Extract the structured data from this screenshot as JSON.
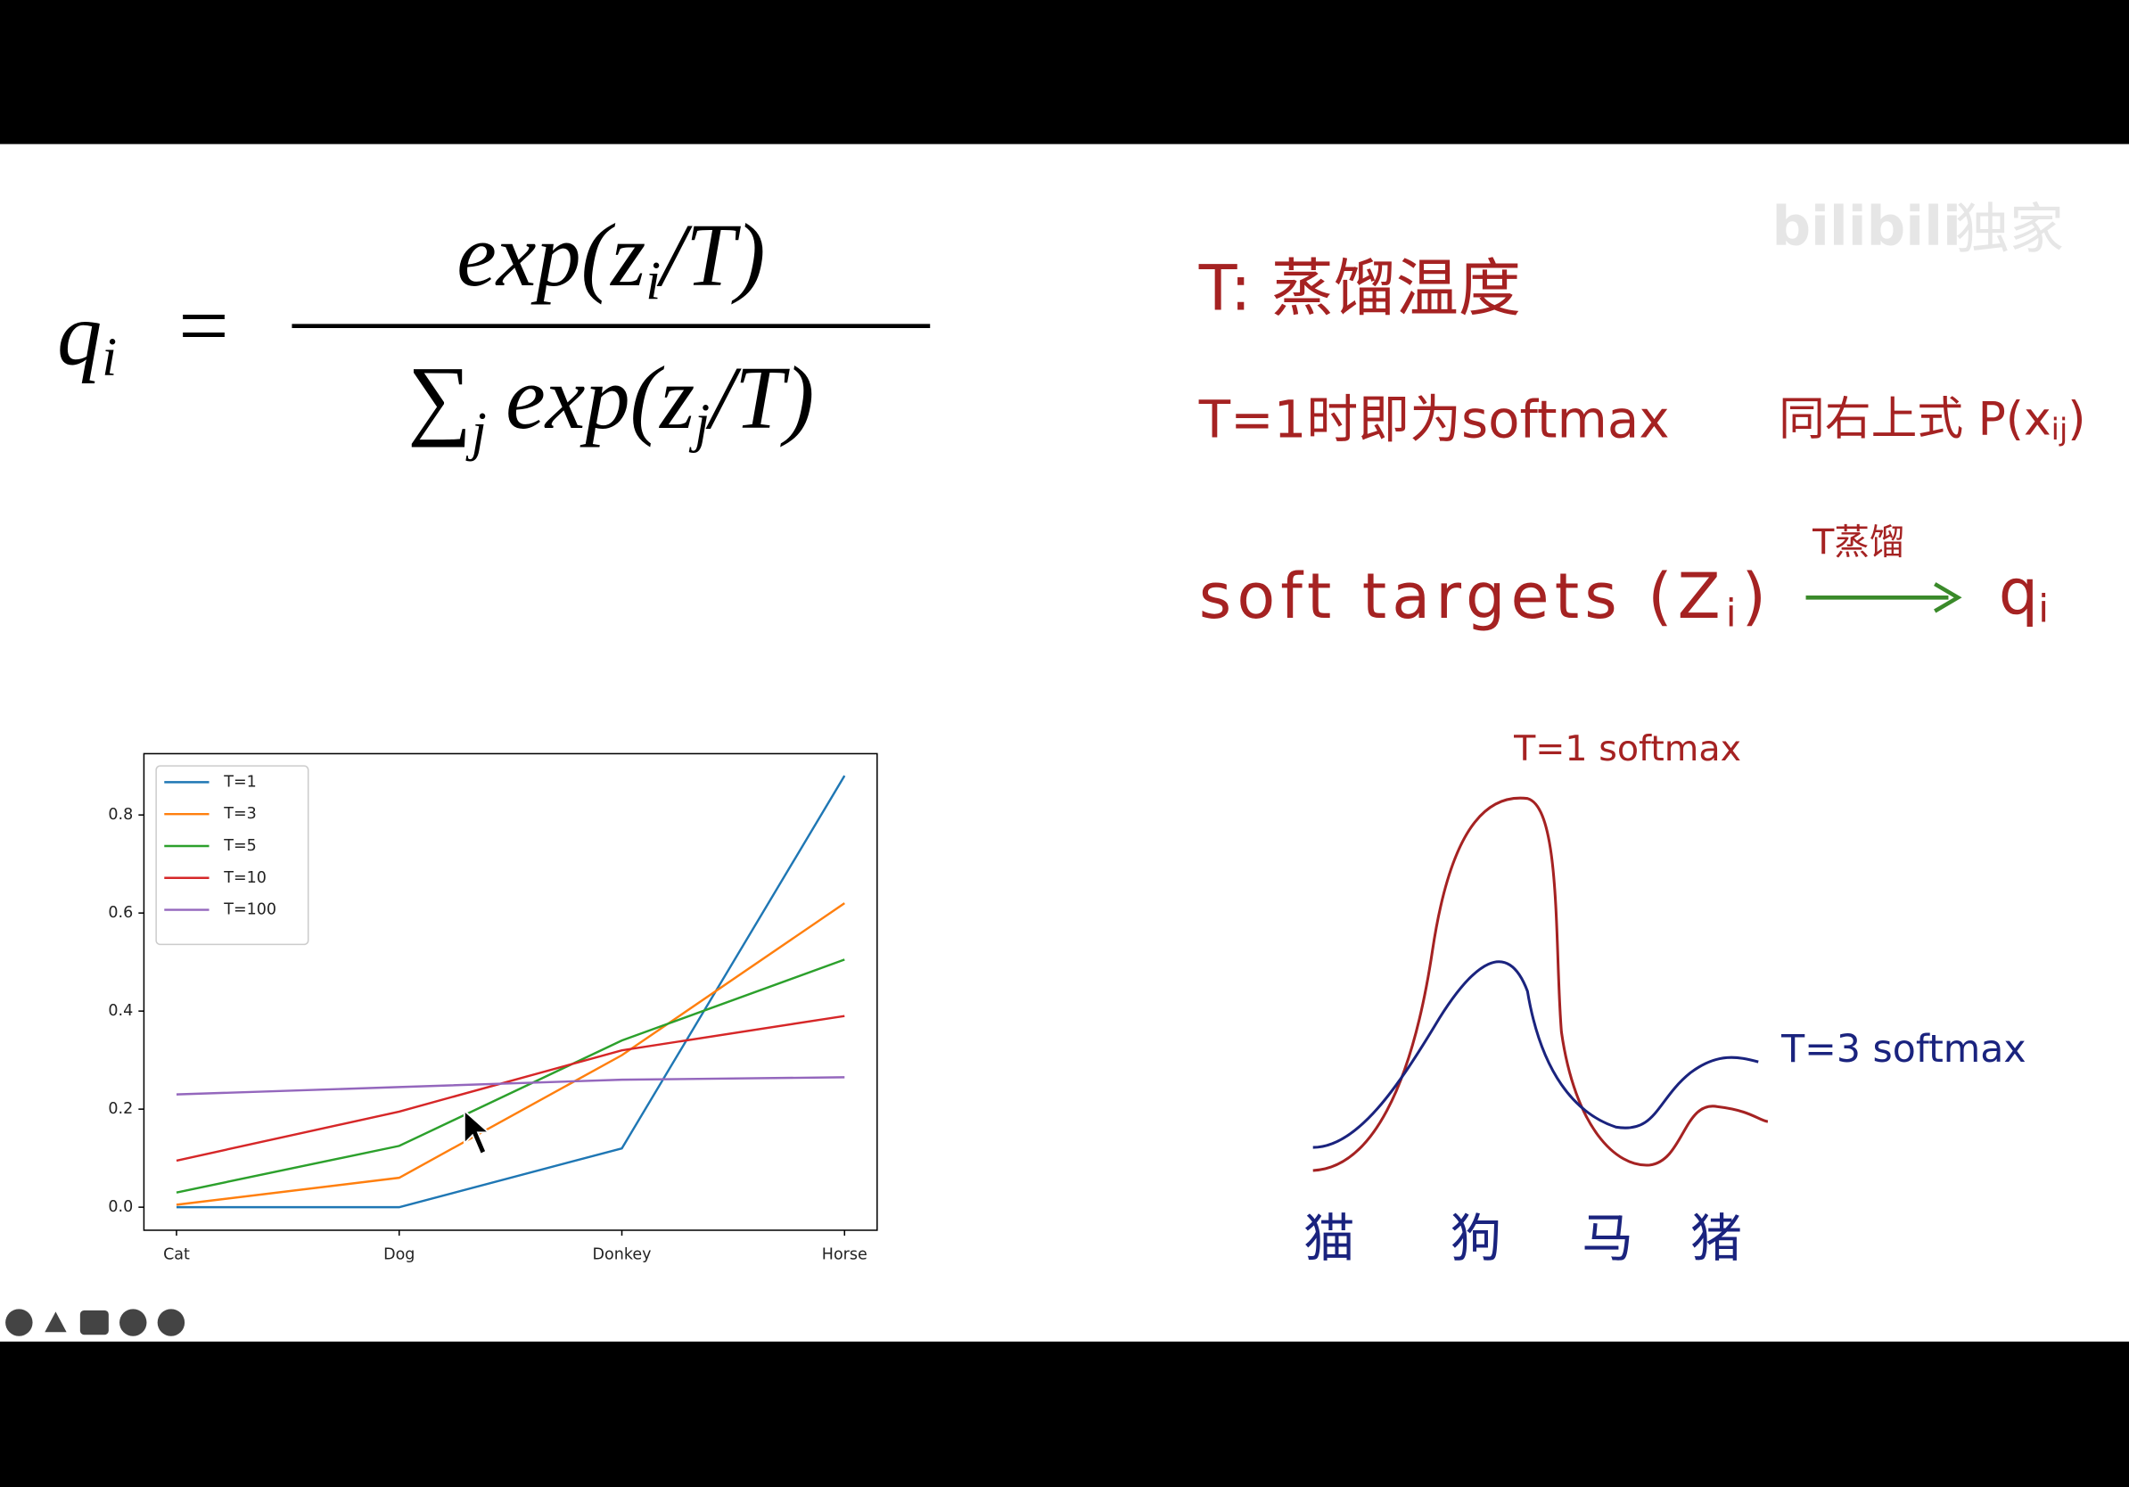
{
  "formula": {
    "lhs": "q",
    "lhs_index": "i",
    "equals": "=",
    "numerator_parts": [
      "exp(z",
      "i",
      "/T)"
    ],
    "denominator_parts": [
      "∑",
      "j",
      "exp(z",
      "j",
      "/T)"
    ]
  },
  "notes": {
    "line1": "T: 蒸馏温度",
    "line2": "T=1时即为softmax",
    "line2_ref_parts": [
      "同右上式 P(x",
      "ij",
      ")"
    ],
    "line3_parts": [
      "soft targets (Z",
      "i",
      ")"
    ],
    "arrow_label": "T蒸馏",
    "result_parts": [
      "q",
      "i"
    ]
  },
  "watermark": {
    "brand": "bilibili",
    "tag": "独家"
  },
  "sketch": {
    "curve1_label": "T=1 softmax",
    "curve2_label": "T=3 softmax",
    "labels": [
      "猫",
      "狗",
      "马",
      "猪"
    ]
  },
  "chart_data": {
    "type": "line",
    "categories": [
      "Cat",
      "Dog",
      "Donkey",
      "Horse"
    ],
    "series": [
      {
        "name": "T=1",
        "color": "#1f77b4",
        "values": [
          0.0,
          0.0,
          0.12,
          0.88
        ]
      },
      {
        "name": "T=3",
        "color": "#ff7f0e",
        "values": [
          0.005,
          0.06,
          0.31,
          0.62
        ]
      },
      {
        "name": "T=5",
        "color": "#2ca02c",
        "values": [
          0.03,
          0.125,
          0.34,
          0.505
        ]
      },
      {
        "name": "T=10",
        "color": "#d62728",
        "values": [
          0.095,
          0.195,
          0.32,
          0.39
        ]
      },
      {
        "name": "T=100",
        "color": "#9467bd",
        "values": [
          0.23,
          0.245,
          0.26,
          0.265
        ]
      }
    ],
    "ylim": [
      -0.047,
      0.925
    ],
    "yticks": [
      {
        "value": 0,
        "label": "0.0"
      },
      {
        "value": 0.2,
        "label": "0.2"
      },
      {
        "value": 0.4,
        "label": "0.4"
      },
      {
        "value": 0.6,
        "label": "0.6"
      },
      {
        "value": 0.8,
        "label": "0.8"
      }
    ],
    "grid": false,
    "legend": "upper left"
  }
}
